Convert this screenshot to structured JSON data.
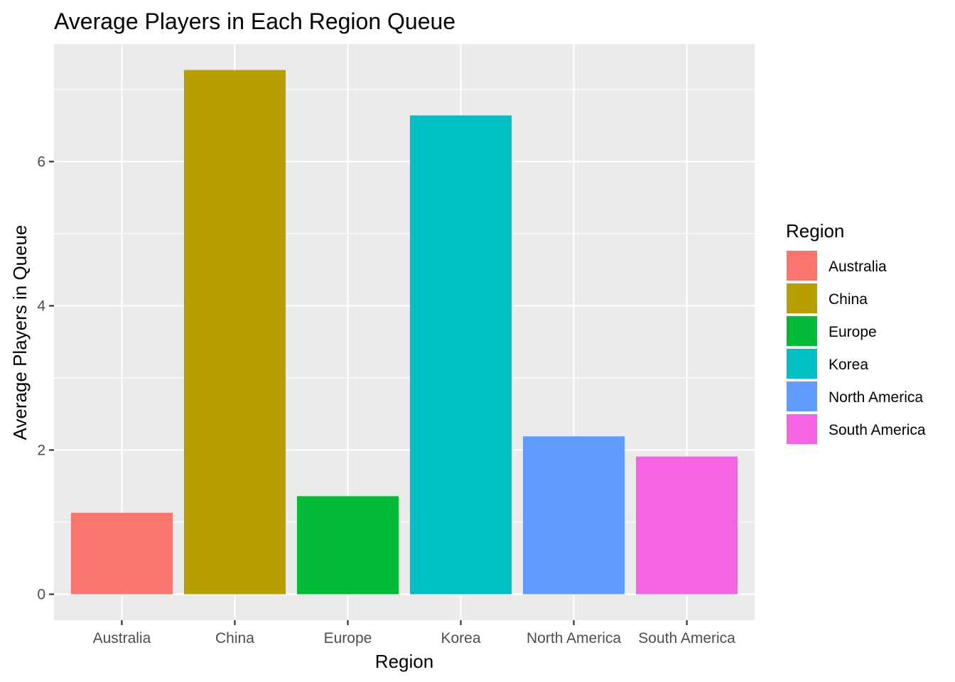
{
  "chart_data": {
    "type": "bar",
    "title": "Average Players in Each Region Queue",
    "xlabel": "Region",
    "ylabel": "Average Players in Queue",
    "categories": [
      "Australia",
      "China",
      "Europe",
      "Korea",
      "North America",
      "South America"
    ],
    "values": [
      1.13,
      7.27,
      1.36,
      6.64,
      2.19,
      1.91
    ],
    "colors": [
      "#F8766D",
      "#B79F00",
      "#00BA38",
      "#00BFC4",
      "#619CFF",
      "#F564E3"
    ],
    "yticks": [
      0,
      2,
      4,
      6
    ],
    "ylim": [
      -0.36,
      7.63
    ],
    "grid": true,
    "panel_background": "#EBEBEB",
    "legend": {
      "title": "Region",
      "position": "right",
      "entries": [
        "Australia",
        "China",
        "Europe",
        "Korea",
        "North America",
        "South America"
      ]
    }
  }
}
